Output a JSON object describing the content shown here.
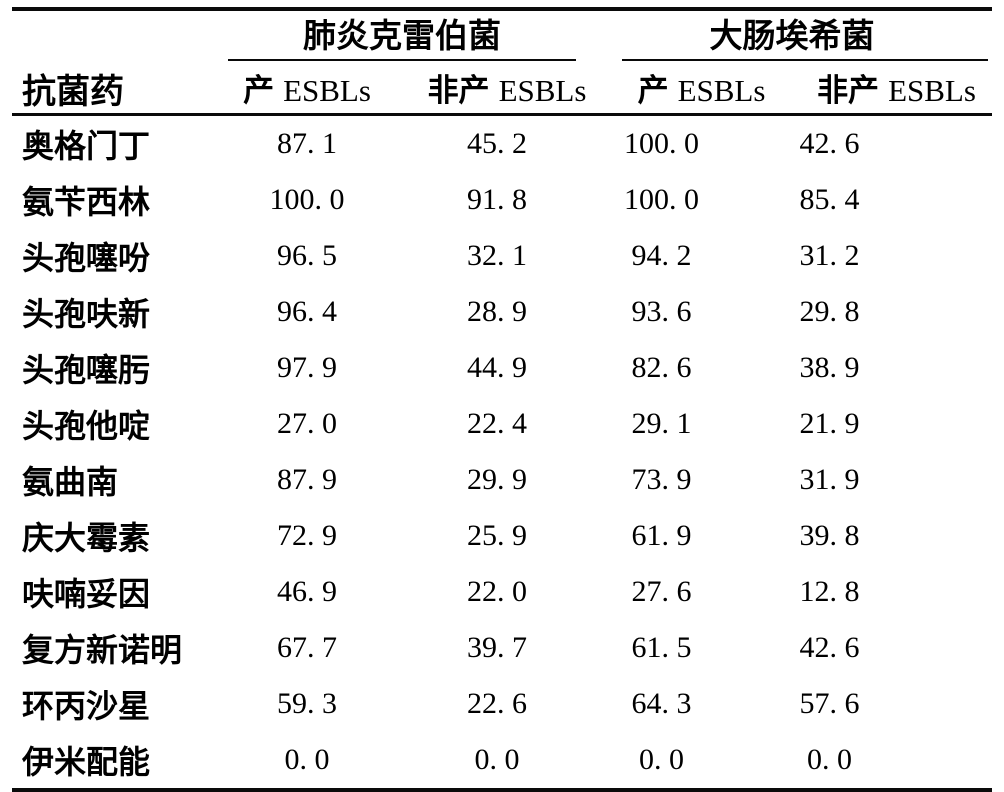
{
  "table": {
    "corner_header": "抗菌药",
    "groups": [
      {
        "label": "肺炎克雷伯菌"
      },
      {
        "label": "大肠埃希菌"
      }
    ],
    "sub_headers": [
      {
        "zh": "产",
        "en": "ESBLs"
      },
      {
        "zh": "非产",
        "en": "ESBLs"
      },
      {
        "zh": "产",
        "en": "ESBLs"
      },
      {
        "zh": "非产",
        "en": "ESBLs"
      }
    ],
    "rows": [
      {
        "drug": "奥格门丁",
        "values": [
          "87. 1",
          "45. 2",
          "100. 0",
          "42. 6"
        ]
      },
      {
        "drug": "氨苄西林",
        "values": [
          "100. 0",
          "91. 8",
          "100. 0",
          "85. 4"
        ]
      },
      {
        "drug": "头孢噻吩",
        "values": [
          "96. 5",
          "32. 1",
          "94. 2",
          "31. 2"
        ]
      },
      {
        "drug": "头孢呋新",
        "values": [
          "96. 4",
          "28. 9",
          "93. 6",
          "29. 8"
        ]
      },
      {
        "drug": "头孢噻肟",
        "values": [
          "97. 9",
          "44. 9",
          "82. 6",
          "38. 9"
        ]
      },
      {
        "drug": "头孢他啶",
        "values": [
          "27. 0",
          "22. 4",
          "29. 1",
          "21. 9"
        ]
      },
      {
        "drug": "氨曲南",
        "values": [
          "87. 9",
          "29. 9",
          "73. 9",
          "31. 9"
        ]
      },
      {
        "drug": "庆大霉素",
        "values": [
          "72. 9",
          "25. 9",
          "61. 9",
          "39. 8"
        ]
      },
      {
        "drug": "呋喃妥因",
        "values": [
          "46. 9",
          "22. 0",
          "27. 6",
          "12. 8"
        ]
      },
      {
        "drug": "复方新诺明",
        "values": [
          "67. 7",
          "39. 7",
          "61. 5",
          "42. 6"
        ]
      },
      {
        "drug": "环丙沙星",
        "values": [
          "59. 3",
          "22. 6",
          "64. 3",
          "57. 6"
        ]
      },
      {
        "drug": "伊米配能",
        "values": [
          "0. 0",
          "0. 0",
          "0. 0",
          "0. 0"
        ]
      }
    ],
    "colors": {
      "text": "#000000",
      "rule": "#0a0a0a",
      "background": "#ffffff"
    }
  }
}
